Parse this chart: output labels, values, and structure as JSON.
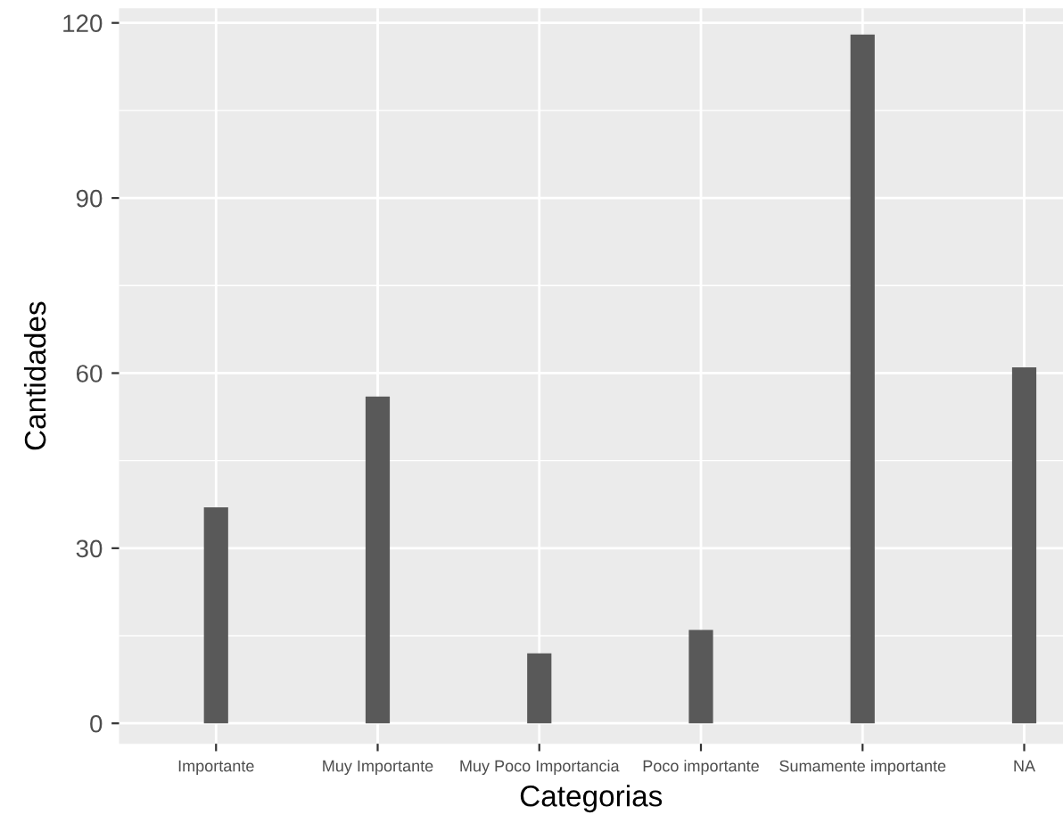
{
  "chart_data": {
    "type": "bar",
    "xlabel": "Categorias",
    "ylabel": "Cantidades",
    "categories": [
      "Importante",
      "Muy Importante",
      "Muy Poco Importancia",
      "Poco importante",
      "Sumamente importante",
      "NA"
    ],
    "values": [
      37,
      56,
      12,
      16,
      118,
      61
    ],
    "color": "#595959",
    "ylim": [
      -3.5,
      122.5
    ],
    "yticks": [
      0,
      30,
      60,
      90,
      120
    ],
    "grid": true
  }
}
